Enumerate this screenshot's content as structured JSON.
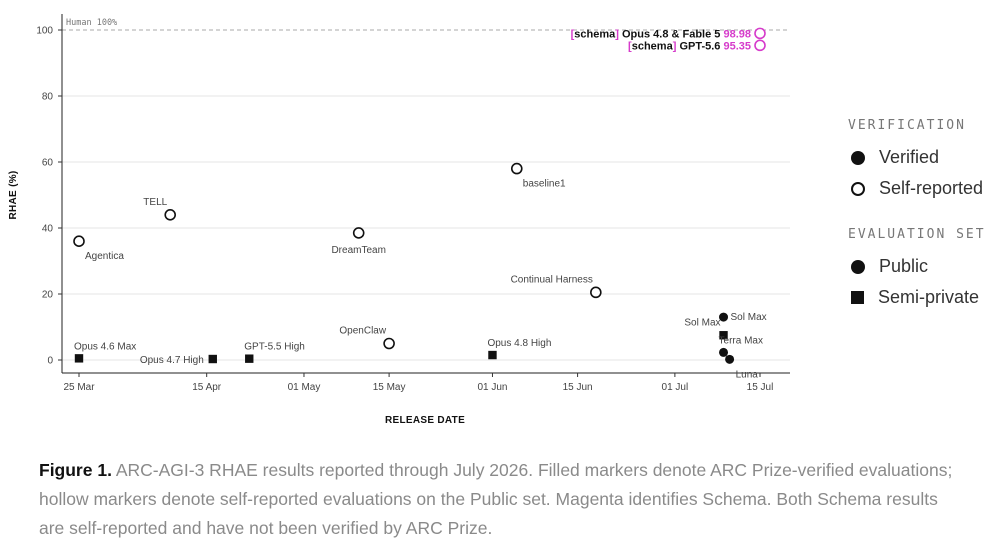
{
  "chart_data": {
    "type": "scatter",
    "ylabel": "RHAE (%)",
    "xlabel": "RELEASE DATE",
    "ylim": [
      0,
      100
    ],
    "xlim": [
      "2026-03-25",
      "2026-07-15"
    ],
    "yticks": [
      "0",
      "20",
      "40",
      "60",
      "80",
      "100"
    ],
    "xticks": [
      {
        "date": "2026-03-25",
        "label": "25 Mar"
      },
      {
        "date": "2026-04-15",
        "label": "15 Apr"
      },
      {
        "date": "2026-05-01",
        "label": "01 May"
      },
      {
        "date": "2026-05-15",
        "label": "15 May"
      },
      {
        "date": "2026-06-01",
        "label": "01 Jun"
      },
      {
        "date": "2026-06-15",
        "label": "15 Jun"
      },
      {
        "date": "2026-07-01",
        "label": "01 Jul"
      },
      {
        "date": "2026-07-15",
        "label": "15 Jul"
      }
    ],
    "grid": true,
    "reference_line": {
      "y": 100,
      "label": "Human 100%"
    },
    "points": [
      {
        "label": "Agentica",
        "date": "2026-03-25",
        "y": 36,
        "verification": "Self-reported",
        "set": "Public",
        "label_pos": "below-right"
      },
      {
        "label": "TELL",
        "date": "2026-04-09",
        "y": 44,
        "verification": "Self-reported",
        "set": "Public",
        "label_pos": "above-left"
      },
      {
        "label": "DreamTeam",
        "date": "2026-05-10",
        "y": 38.5,
        "verification": "Self-reported",
        "set": "Public",
        "label_pos": "below"
      },
      {
        "label": "baseline1",
        "date": "2026-06-05",
        "y": 58,
        "verification": "Self-reported",
        "set": "Public",
        "label_pos": "below-right"
      },
      {
        "label": "Continual Harness",
        "date": "2026-06-18",
        "y": 20.5,
        "verification": "Self-reported",
        "set": "Public",
        "label_pos": "above-left"
      },
      {
        "label": "OpenClaw",
        "date": "2026-05-15",
        "y": 5,
        "verification": "Self-reported",
        "set": "Public",
        "label_pos": "above-left"
      },
      {
        "label": "Opus 4.6 Max",
        "date": "2026-03-25",
        "y": 0.5,
        "verification": "Verified",
        "set": "Semi-private",
        "label_pos": "above-right"
      },
      {
        "label": "Opus 4.7 High",
        "date": "2026-04-16",
        "y": 0.3,
        "verification": "Verified",
        "set": "Semi-private",
        "label_pos": "left"
      },
      {
        "label": "GPT-5.5 High",
        "date": "2026-04-22",
        "y": 0.4,
        "verification": "Verified",
        "set": "Semi-private",
        "label_pos": "above-right"
      },
      {
        "label": "Opus 4.8 High",
        "date": "2026-06-01",
        "y": 1.5,
        "verification": "Verified",
        "set": "Semi-private",
        "label_pos": "above-right"
      },
      {
        "label": "Sol Max",
        "date": "2026-07-09",
        "y": 13,
        "verification": "Verified",
        "set": "Public",
        "label_pos": "right"
      },
      {
        "label": "Sol Max",
        "date": "2026-07-09",
        "y": 7.5,
        "verification": "Verified",
        "set": "Semi-private",
        "label_pos": "above-left"
      },
      {
        "label": "Terra Max",
        "date": "2026-07-09",
        "y": 2.3,
        "verification": "Verified",
        "set": "Public",
        "label_pos": "above-right"
      },
      {
        "label": "Luna",
        "date": "2026-07-10",
        "y": 0.2,
        "verification": "Verified",
        "set": "Public",
        "label_pos": "below-right"
      },
      {
        "label": "Opus 4.8 & Fable 5",
        "date": "2026-07-15",
        "y": 98.98,
        "verification": "Self-reported",
        "set": "Public",
        "schema": true,
        "value_label": "98.98",
        "label_pos": "left"
      },
      {
        "label": "GPT-5.6",
        "date": "2026-07-15",
        "y": 95.35,
        "verification": "Self-reported",
        "set": "Public",
        "schema": true,
        "value_label": "95.35",
        "label_pos": "left"
      }
    ],
    "schema_prefix": "schema",
    "colors": {
      "marker": "#111111",
      "schema": "#d63bcb",
      "grid": "#e6e6e6",
      "reference": "#aaaaaa"
    }
  },
  "legend": {
    "verification_title": "VERIFICATION",
    "verified": "Verified",
    "self_reported": "Self-reported",
    "evaluation_title": "EVALUATION SET",
    "public": "Public",
    "semi_private": "Semi-private"
  },
  "caption": {
    "lead": "Figure 1.",
    "text": " ARC-AGI-3 RHAE results reported through July 2026. Filled markers denote ARC Prize-verified evaluations; hollow markers denote self-reported evaluations on the Public set. Magenta identifies Schema. Both Schema results are self-reported and have not been verified by ARC Prize."
  }
}
